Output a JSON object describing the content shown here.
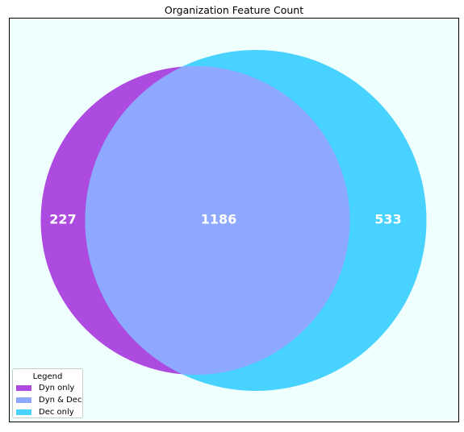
{
  "title": "Organization Feature Count",
  "colors": {
    "plot_background": "#effffe",
    "frame": "#000000",
    "dyn_only": "#ad4be0",
    "dyn_and_dec": "#8fa8ff",
    "dec_only": "#48d2ff",
    "label_text": "#ffffff"
  },
  "chart_data": {
    "type": "venn",
    "sets": [
      {
        "name": "Dyn",
        "only_count": 227
      },
      {
        "name": "Dec",
        "only_count": 533
      }
    ],
    "regions": [
      {
        "key": "dyn_only",
        "label": "227",
        "value": 227
      },
      {
        "key": "dyn_and_dec",
        "label": "1186",
        "value": 1186
      },
      {
        "key": "dec_only",
        "label": "533",
        "value": 533
      }
    ]
  },
  "legend": {
    "title": "Legend",
    "placement": "bottom-left",
    "items": [
      {
        "label": "Dyn only",
        "color": "#ad4be0"
      },
      {
        "label": "Dyn & Dec",
        "color": "#8fa8ff"
      },
      {
        "label": "Dec only",
        "color": "#48d2ff"
      }
    ]
  }
}
